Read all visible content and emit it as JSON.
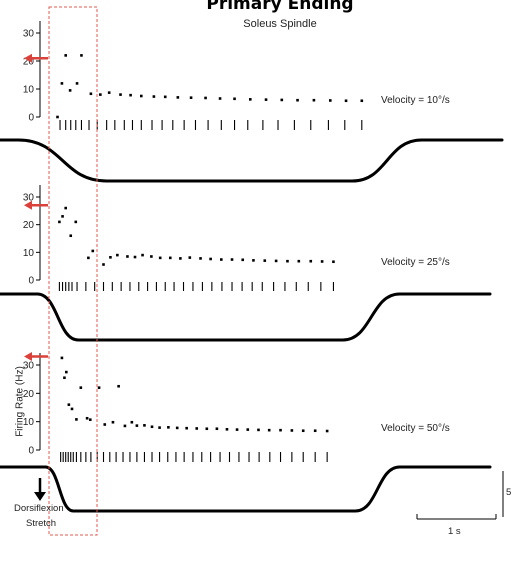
{
  "figure": {
    "title": "Primary Ending",
    "subtitle": "Soleus Spindle",
    "ylabel": "Firing Rate (Hz)",
    "stimulus_label_1": "Dorsiflexion",
    "stimulus_label_2": "Stretch",
    "time_scale_label": "1 s",
    "cut_label": "5"
  },
  "colors": {
    "arrow": "#d9413a",
    "box": "#e05a4e",
    "ink": "#000000"
  },
  "chart_data": [
    {
      "type": "scatter",
      "title": "Velocity = 10°/s",
      "ylabel": "Firing Rate (Hz)",
      "ylim": [
        0,
        30
      ],
      "yticks": [
        0,
        10,
        20,
        30
      ],
      "grid": false,
      "arrow_value": 21,
      "points": [
        [
          -0.23,
          0
        ],
        [
          -0.1,
          22
        ],
        [
          0.15,
          22
        ],
        [
          -0.16,
          12
        ],
        [
          -0.03,
          9.5
        ],
        [
          0.08,
          12
        ],
        [
          0.3,
          8.3
        ],
        [
          0.45,
          8
        ],
        [
          0.59,
          8.7
        ],
        [
          0.77,
          8
        ],
        [
          0.93,
          7.8
        ],
        [
          1.1,
          7.5
        ],
        [
          1.3,
          7.3
        ],
        [
          1.48,
          7.2
        ],
        [
          1.68,
          7
        ],
        [
          1.89,
          6.9
        ],
        [
          2.12,
          6.8
        ],
        [
          2.35,
          6.6
        ],
        [
          2.58,
          6.5
        ],
        [
          2.83,
          6.3
        ],
        [
          3.08,
          6.2
        ],
        [
          3.33,
          6.1
        ],
        [
          3.58,
          6
        ],
        [
          3.84,
          6
        ],
        [
          4.1,
          5.9
        ],
        [
          4.35,
          5.8
        ],
        [
          4.6,
          5.8
        ]
      ],
      "spikes": [
        -0.19,
        -0.1,
        -0.02,
        0.06,
        0.15,
        0.27,
        0.4,
        0.55,
        0.68,
        0.83,
        0.96,
        1.1,
        1.27,
        1.43,
        1.6,
        1.78,
        1.96,
        2.16,
        2.37,
        2.58,
        2.79,
        3.03,
        3.27,
        3.53,
        3.79,
        4.07,
        4.33,
        4.6
      ]
    },
    {
      "type": "scatter",
      "title": "Velocity = 25°/s",
      "ylabel": "Firing Rate (Hz)",
      "ylim": [
        0,
        30
      ],
      "yticks": [
        0,
        10,
        20,
        30
      ],
      "grid": false,
      "arrow_value": 27,
      "points": [
        [
          -0.2,
          21
        ],
        [
          -0.15,
          23
        ],
        [
          -0.1,
          26
        ],
        [
          -0.02,
          16
        ],
        [
          0.06,
          21
        ],
        [
          0.26,
          8
        ],
        [
          0.33,
          10.5
        ],
        [
          0.5,
          5.6
        ],
        [
          0.61,
          8.2
        ],
        [
          0.72,
          9
        ],
        [
          0.88,
          8.5
        ],
        [
          1.0,
          8.3
        ],
        [
          1.12,
          9
        ],
        [
          1.26,
          8.5
        ],
        [
          1.4,
          8
        ],
        [
          1.56,
          8
        ],
        [
          1.72,
          7.8
        ],
        [
          1.87,
          8.1
        ],
        [
          2.04,
          7.8
        ],
        [
          2.2,
          7.6
        ],
        [
          2.37,
          7.4
        ],
        [
          2.54,
          7.4
        ],
        [
          2.71,
          7.3
        ],
        [
          2.88,
          7.1
        ],
        [
          3.06,
          7
        ],
        [
          3.24,
          6.9
        ],
        [
          3.42,
          6.8
        ],
        [
          3.6,
          6.8
        ],
        [
          3.79,
          6.8
        ],
        [
          3.97,
          6.7
        ],
        [
          4.15,
          6.6
        ]
      ],
      "spikes": [
        -0.2,
        -0.15,
        -0.1,
        -0.05,
        0.0,
        0.08,
        0.22,
        0.36,
        0.5,
        0.64,
        0.78,
        0.92,
        1.06,
        1.2,
        1.34,
        1.48,
        1.62,
        1.77,
        1.92,
        2.07,
        2.22,
        2.38,
        2.54,
        2.7,
        2.86,
        3.02,
        3.2,
        3.38,
        3.56,
        3.75,
        3.95,
        4.15
      ]
    },
    {
      "type": "scatter",
      "title": "Velocity = 50°/s",
      "ylabel": "Firing Rate (Hz)",
      "ylim": [
        0,
        30
      ],
      "yticks": [
        0,
        10,
        20,
        30
      ],
      "grid": false,
      "arrow_value": 33,
      "points": [
        [
          -0.16,
          32.5
        ],
        [
          -0.12,
          25.5
        ],
        [
          -0.09,
          27.5
        ],
        [
          -0.05,
          16
        ],
        [
          0.0,
          14.5
        ],
        [
          0.07,
          10.8
        ],
        [
          0.14,
          22
        ],
        [
          0.24,
          11.2
        ],
        [
          0.29,
          10.7
        ],
        [
          0.43,
          22
        ],
        [
          0.52,
          9
        ],
        [
          0.65,
          9.8
        ],
        [
          0.74,
          22.5
        ],
        [
          0.84,
          8.5
        ],
        [
          0.95,
          9.8
        ],
        [
          1.03,
          8.6
        ],
        [
          1.15,
          8.7
        ],
        [
          1.27,
          8.2
        ],
        [
          1.39,
          7.9
        ],
        [
          1.53,
          8
        ],
        [
          1.67,
          7.8
        ],
        [
          1.82,
          7.7
        ],
        [
          1.98,
          7.6
        ],
        [
          2.14,
          7.5
        ],
        [
          2.3,
          7.5
        ],
        [
          2.46,
          7.3
        ],
        [
          2.62,
          7.2
        ],
        [
          2.79,
          7.2
        ],
        [
          2.96,
          7.1
        ],
        [
          3.13,
          7
        ],
        [
          3.31,
          7
        ],
        [
          3.49,
          6.9
        ],
        [
          3.67,
          6.8
        ],
        [
          3.86,
          6.8
        ],
        [
          4.05,
          6.7
        ]
      ],
      "spikes": [
        -0.18,
        -0.14,
        -0.1,
        -0.06,
        -0.02,
        0.02,
        0.07,
        0.14,
        0.22,
        0.3,
        0.4,
        0.5,
        0.6,
        0.7,
        0.81,
        0.92,
        1.03,
        1.15,
        1.27,
        1.39,
        1.52,
        1.65,
        1.78,
        1.92,
        2.06,
        2.2,
        2.35,
        2.5,
        2.65,
        2.81,
        2.97,
        3.14,
        3.31,
        3.49,
        3.67,
        3.86,
        4.05
      ]
    }
  ],
  "stimuli": [
    {
      "ramp_start": -0.85,
      "ramp_end": 0.55,
      "hold_end": 4.45,
      "release_end": 5.55
    },
    {
      "ramp_start": -0.55,
      "ramp_end": 0.1,
      "hold_end": 4.3,
      "release_end": 5.2
    },
    {
      "ramp_start": -0.42,
      "ramp_end": 0.02,
      "hold_end": 4.5,
      "release_end": 5.2
    }
  ]
}
